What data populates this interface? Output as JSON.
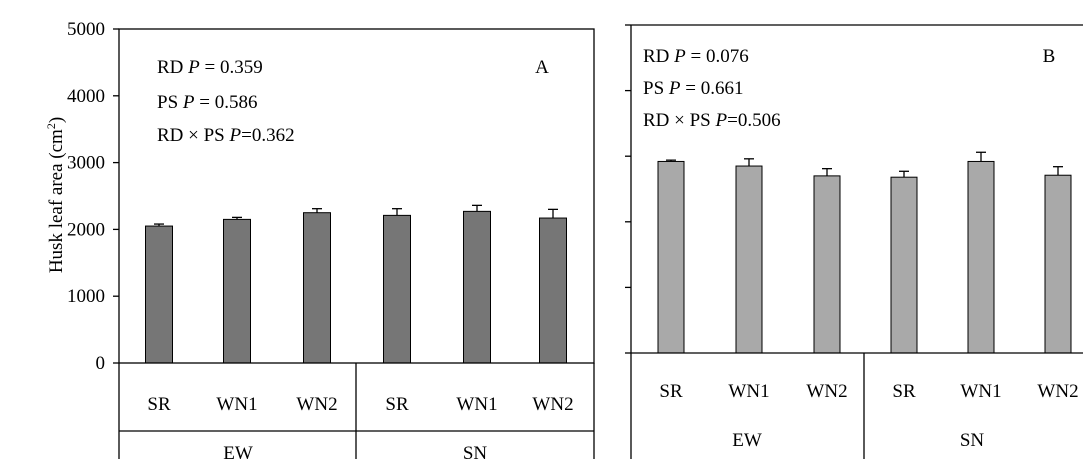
{
  "chart_data": [
    {
      "type": "bar",
      "panel_label": "A",
      "ylabel": "Husk leaf area (cm²)",
      "ylabel_base": "Husk leaf area (cm",
      "ylabel_sup": "2",
      "ylabel_close": ")",
      "ylim": [
        0,
        5000
      ],
      "yticks": [
        0,
        1000,
        2000,
        3000,
        4000,
        5000
      ],
      "tick_labels": [
        "0",
        "1000",
        "2000",
        "3000",
        "4000",
        "5000"
      ],
      "categories": [
        "SR",
        "WN1",
        "WN2",
        "SR",
        "WN1",
        "WN2"
      ],
      "groups": [
        "EW",
        "SN"
      ],
      "values": [
        2050,
        2150,
        2250,
        2210,
        2270,
        2170
      ],
      "errors": [
        30,
        30,
        60,
        100,
        90,
        130
      ],
      "bar_color": "#767676",
      "stats": [
        {
          "prefix": "RD ",
          "p": "P",
          "suffix": " = 0.359"
        },
        {
          "prefix": "PS ",
          "p": "P",
          "suffix": " = 0.586"
        },
        {
          "prefix": "RD × PS ",
          "p": "P",
          "suffix": "=0.362"
        }
      ]
    },
    {
      "type": "bar",
      "panel_label": "B",
      "ylim": [
        0,
        5000
      ],
      "yticks": [
        0,
        1000,
        2000,
        3000,
        4000,
        5000
      ],
      "categories": [
        "SR",
        "WN1",
        "WN2",
        "SR",
        "WN1",
        "WN2"
      ],
      "groups": [
        "EW",
        "SN"
      ],
      "values": [
        2920,
        2850,
        2700,
        2680,
        2920,
        2710
      ],
      "errors": [
        20,
        110,
        110,
        90,
        140,
        130
      ],
      "bar_color": "#a9a9a9",
      "stats": [
        {
          "prefix": "RD ",
          "p": "P",
          "suffix": " = 0.076"
        },
        {
          "prefix": "PS ",
          "p": "P",
          "suffix": " = 0.661"
        },
        {
          "prefix": "RD × PS ",
          "p": "P",
          "suffix": "=0.506"
        }
      ]
    }
  ]
}
